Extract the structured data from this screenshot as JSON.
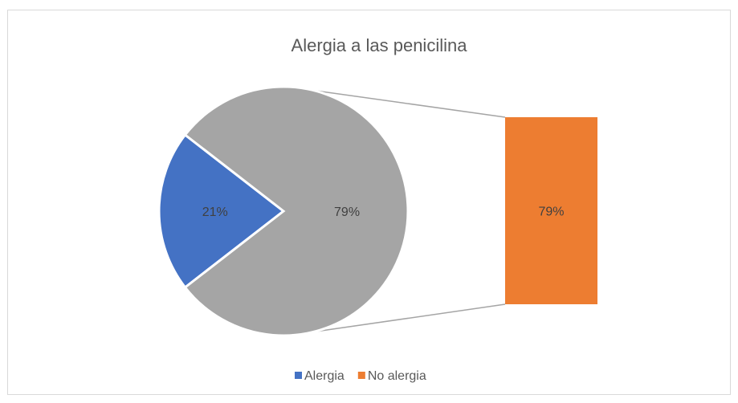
{
  "chart_data": {
    "type": "bar-of-pie",
    "title": "Alergia a las penicilina",
    "categories": [
      "Alergia",
      "No alergia"
    ],
    "values": [
      21,
      79
    ],
    "value_labels": [
      "21%",
      "79%"
    ],
    "colors": [
      "#4472c4",
      "#ed7d31"
    ],
    "other_color": "#a5a5a5",
    "legend": "bottom"
  }
}
